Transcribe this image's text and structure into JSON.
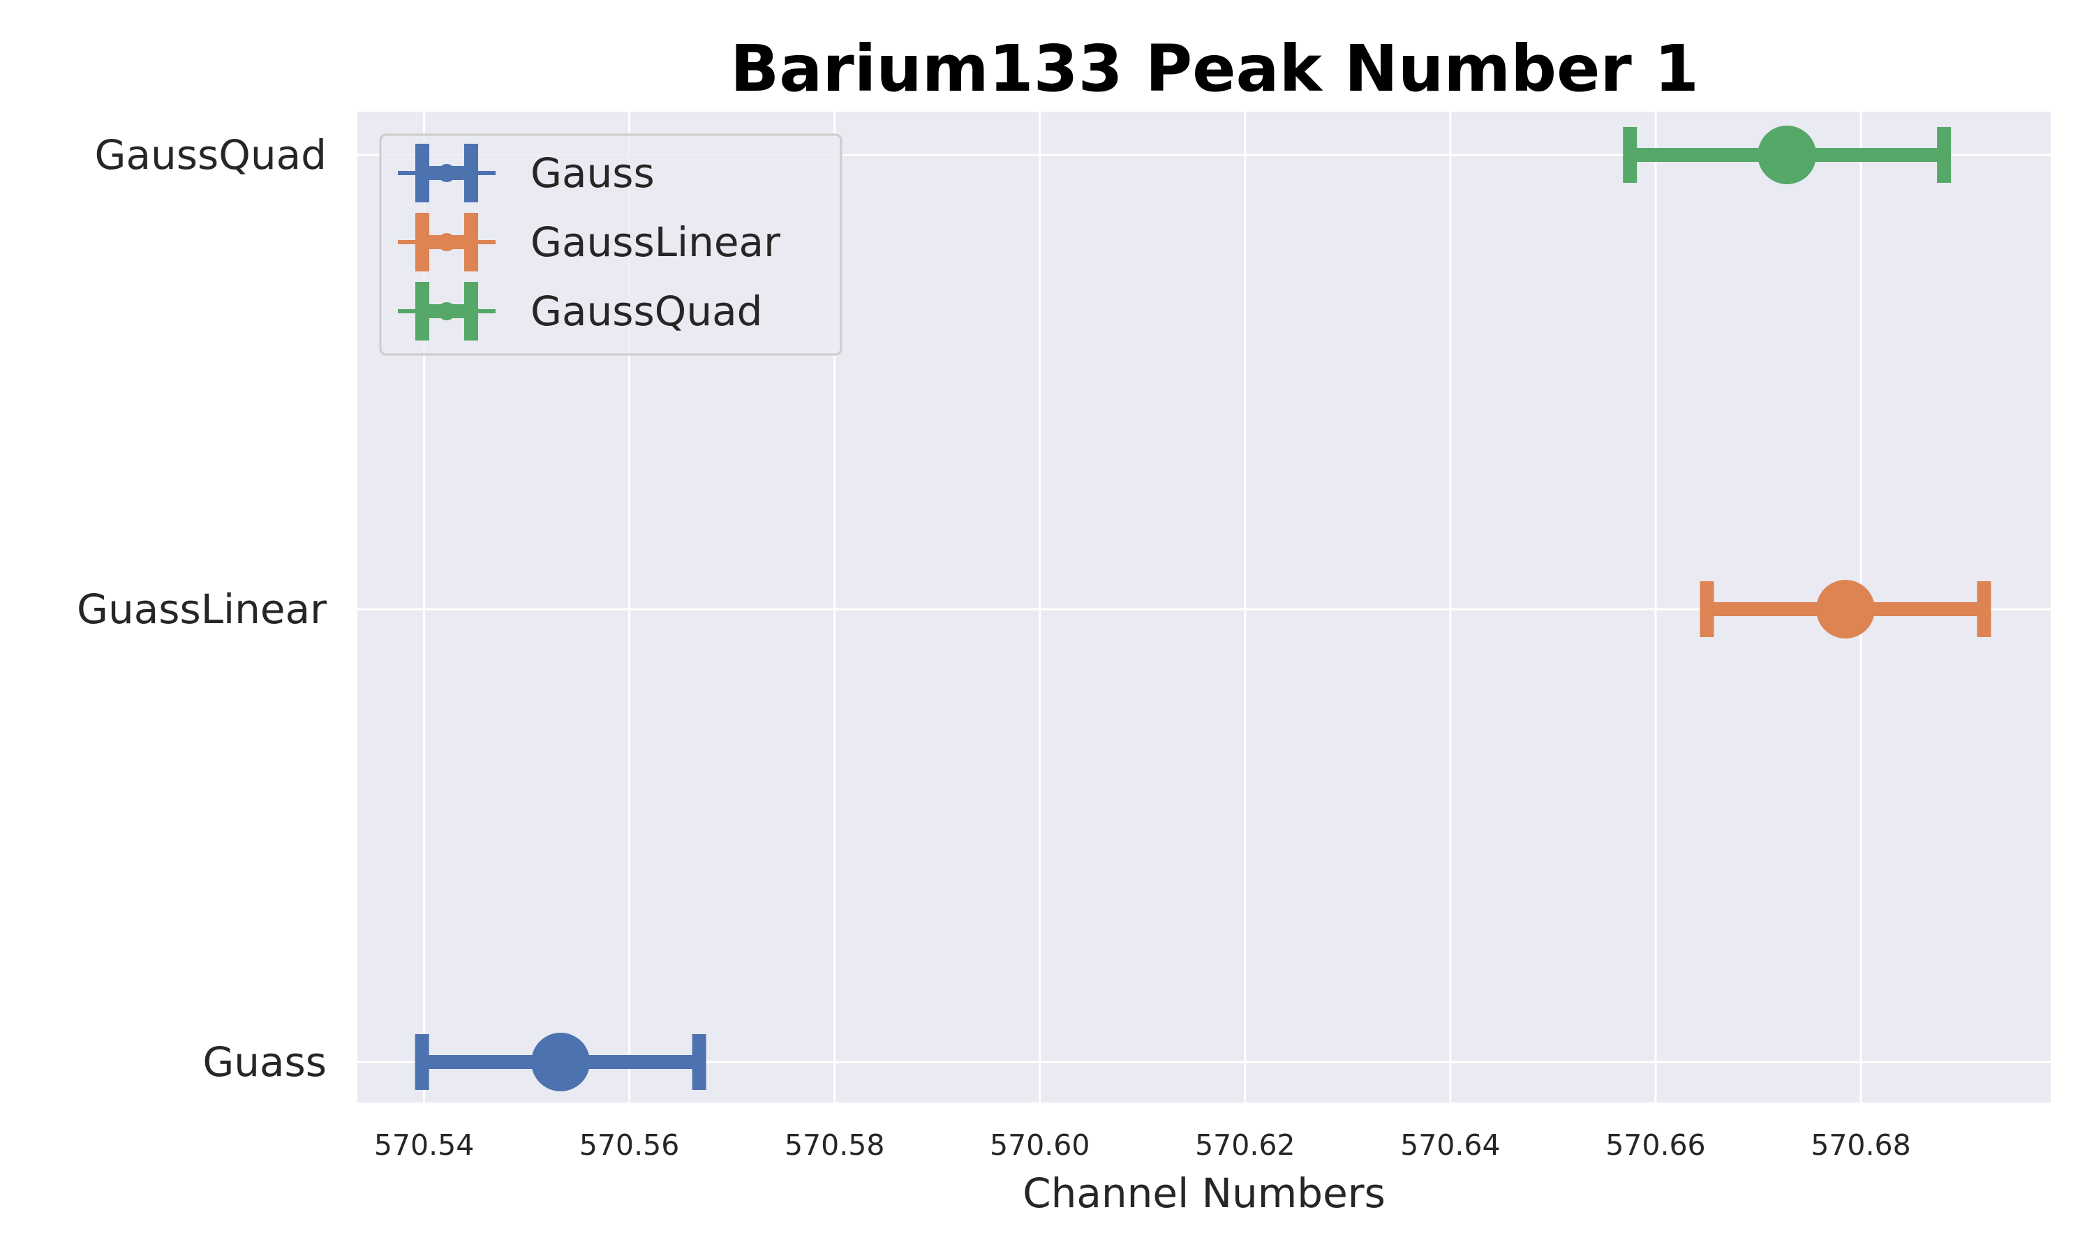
{
  "chart_data": {
    "type": "scatter",
    "title": "Barium133 Peak Number 1",
    "xlabel": "Channel Numbers",
    "ylabel": "",
    "xlim": [
      570.5335,
      570.6985
    ],
    "x_ticks": [
      "570.54",
      "570.56",
      "570.58",
      "570.60",
      "570.62",
      "570.64",
      "570.66",
      "570.68"
    ],
    "x_tick_values": [
      570.54,
      570.56,
      570.58,
      570.6,
      570.62,
      570.64,
      570.66,
      570.68
    ],
    "categories": [
      "Guass",
      "GuassLinear",
      "GaussQuad"
    ],
    "grid": true,
    "legend": {
      "position": "top-left",
      "entries": [
        "Gauss",
        "GaussLinear",
        "GaussQuad"
      ]
    },
    "series": [
      {
        "name": "Gauss",
        "category": "Guass",
        "x": 570.5533,
        "xerr": 0.0135,
        "color": "#4c72b0"
      },
      {
        "name": "GaussLinear",
        "category": "GuassLinear",
        "x": 570.6785,
        "xerr": 0.0135,
        "color": "#dd8452"
      },
      {
        "name": "GaussQuad",
        "category": "GaussQuad",
        "x": 570.6728,
        "xerr": 0.0153,
        "color": "#55a868"
      }
    ],
    "background_color": "#eaeaf2",
    "grid_color": "#ffffff"
  }
}
